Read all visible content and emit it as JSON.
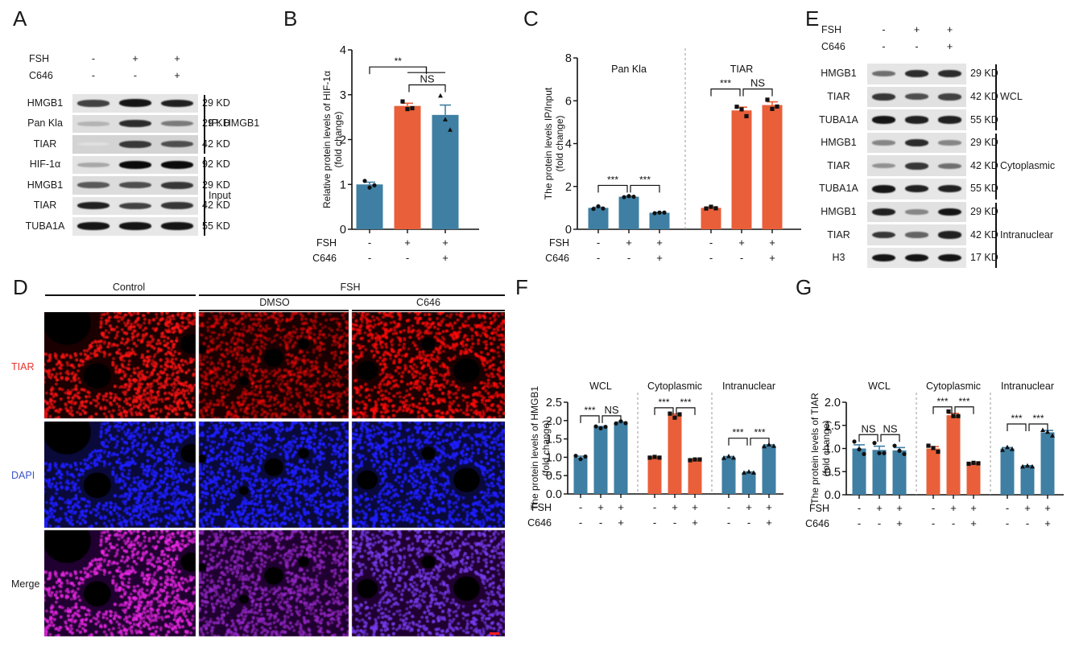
{
  "figure": {
    "panels": [
      "A",
      "B",
      "C",
      "D",
      "E",
      "F",
      "G"
    ],
    "colors": {
      "blue": "#3f7fa3",
      "orange": "#e95f3a",
      "tiar_label": "#e8312b",
      "dapi_label": "#3b54c8",
      "axis": "#111111",
      "separator": "#9a9a9a"
    }
  },
  "panel_a": {
    "letter": "A",
    "treatments": [
      {
        "name": "FSH",
        "values": [
          "-",
          "+",
          "+"
        ]
      },
      {
        "name": "C646",
        "values": [
          "-",
          "-",
          "+"
        ]
      }
    ],
    "rows": [
      {
        "protein": "HMGB1",
        "size": "29 KD",
        "intensity": [
          0.75,
          0.95,
          0.9
        ],
        "bg": 0.1
      },
      {
        "protein": "Pan Kla",
        "size": "29 KD",
        "intensity": [
          0.25,
          0.85,
          0.5
        ],
        "bg": 0.18
      },
      {
        "protein": "TIAR",
        "size": "42 KD",
        "intensity": [
          0.05,
          0.8,
          0.7
        ],
        "bg": 0.3
      },
      {
        "protein": "HIF-1α",
        "size": "92 KD",
        "intensity": [
          0.3,
          1.0,
          1.0
        ],
        "bg": 0.12
      },
      {
        "protein": "HMGB1",
        "size": "29 KD",
        "intensity": [
          0.65,
          0.7,
          0.8
        ],
        "bg": 0.2
      },
      {
        "protein": "TIAR",
        "size": "42 KD",
        "intensity": [
          0.9,
          0.75,
          0.8
        ],
        "bg": 0.1
      },
      {
        "protein": "TUBA1A",
        "size": "55 KD",
        "intensity": [
          0.95,
          0.95,
          0.95
        ],
        "bg": 0.08
      }
    ],
    "groups": [
      {
        "label": "IP: HMGB1",
        "rows": [
          0,
          2
        ]
      },
      {
        "label": "Input",
        "rows": [
          3,
          6
        ]
      }
    ]
  },
  "panel_d": {
    "letter": "D",
    "top_headers": [
      {
        "label": "Control",
        "cols": [
          0,
          0
        ]
      },
      {
        "label": "FSH",
        "cols": [
          1,
          2
        ]
      }
    ],
    "sub_headers": [
      {
        "label": "DMSO",
        "col": 1
      },
      {
        "label": "C646",
        "col": 2
      }
    ],
    "row_labels": [
      "TIAR",
      "DAPI",
      "Merge"
    ]
  },
  "panel_e": {
    "letter": "E",
    "treatments": [
      {
        "name": "FSH",
        "values": [
          "-",
          "+",
          "+"
        ]
      },
      {
        "name": "C646",
        "values": [
          "-",
          "-",
          "+"
        ]
      }
    ],
    "rows": [
      {
        "protein": "HMGB1",
        "size": "29 KD",
        "intensity": [
          0.55,
          0.85,
          0.85
        ],
        "bg": 0.1
      },
      {
        "protein": "TIAR",
        "size": "42 KD",
        "intensity": [
          0.8,
          0.7,
          0.75
        ],
        "bg": 0.15
      },
      {
        "protein": "TUBA1A",
        "size": "55 KD",
        "intensity": [
          0.95,
          0.9,
          0.9
        ],
        "bg": 0.1
      },
      {
        "protein": "HMGB1",
        "size": "29 KD",
        "intensity": [
          0.45,
          0.85,
          0.45
        ],
        "bg": 0.12
      },
      {
        "protein": "TIAR",
        "size": "42 KD",
        "intensity": [
          0.4,
          0.8,
          0.55
        ],
        "bg": 0.15
      },
      {
        "protein": "TUBA1A",
        "size": "55 KD",
        "intensity": [
          0.95,
          0.9,
          0.9
        ],
        "bg": 0.08
      },
      {
        "protein": "HMGB1",
        "size": "29 KD",
        "intensity": [
          0.9,
          0.45,
          0.95
        ],
        "bg": 0.15
      },
      {
        "protein": "TIAR",
        "size": "42 KD",
        "intensity": [
          0.8,
          0.6,
          0.9
        ],
        "bg": 0.12
      },
      {
        "protein": "H3",
        "size": "17 KD",
        "intensity": [
          0.95,
          0.95,
          0.95
        ],
        "bg": 0.08
      }
    ],
    "groups": [
      {
        "label": "WCL",
        "rows": [
          0,
          2
        ]
      },
      {
        "label": "Cytoplasmic",
        "rows": [
          3,
          5
        ]
      },
      {
        "label": "Intranuclear",
        "rows": [
          6,
          8
        ]
      }
    ]
  },
  "chart_data": [
    {
      "id": "B",
      "letter": "B",
      "type": "bar",
      "title": "",
      "ylabel": "Relative protein levels of HIF-1α\n(fold change)",
      "ylim": [
        0,
        4
      ],
      "yticks": [
        "0",
        "1",
        "2",
        "3",
        "4"
      ],
      "ytick_values": [
        0,
        1,
        2,
        3,
        4
      ],
      "groups": [
        {
          "label": "",
          "bars": [
            {
              "value": 1.0,
              "sem": 0.05,
              "color": "blue",
              "points": [
                1.08,
                0.93,
                0.98
              ],
              "marker": "circle"
            },
            {
              "value": 2.75,
              "sem": 0.06,
              "color": "orange",
              "points": [
                2.85,
                2.68,
                2.7
              ],
              "marker": "square"
            },
            {
              "value": 2.55,
              "sem": 0.22,
              "color": "blue",
              "points": [
                2.98,
                2.45,
                2.22
              ],
              "marker": "triangle"
            }
          ]
        }
      ],
      "treatments": [
        {
          "name": "FSH",
          "values": [
            "-",
            "+",
            "+"
          ]
        },
        {
          "name": "C646",
          "values": [
            "-",
            "-",
            "+"
          ]
        }
      ],
      "significance": [
        {
          "from": [
            0,
            0
          ],
          "to": "group-1-2",
          "label": "**",
          "y": 3.62
        },
        {
          "from": [
            0,
            1
          ],
          "to": [
            0,
            2
          ],
          "label": "NS",
          "y": 3.22
        }
      ]
    },
    {
      "id": "C",
      "letter": "C",
      "type": "bar",
      "ylabel": "The protein levels IP/Input\n(fold change)",
      "ylim": [
        0,
        8
      ],
      "yticks": [
        "0",
        "2",
        "4",
        "6",
        "8"
      ],
      "ytick_values": [
        0,
        2,
        4,
        6,
        8
      ],
      "groups": [
        {
          "label": "Pan Kla",
          "bars": [
            {
              "value": 1.0,
              "sem": 0.03,
              "color": "blue",
              "points": [
                0.95,
                1.07,
                0.97
              ],
              "marker": "circle"
            },
            {
              "value": 1.52,
              "sem": 0.02,
              "color": "blue",
              "points": [
                1.5,
                1.55,
                1.52
              ],
              "marker": "circle"
            },
            {
              "value": 0.77,
              "sem": 0.02,
              "color": "blue",
              "points": [
                0.75,
                0.78,
                0.78
              ],
              "marker": "circle"
            }
          ]
        },
        {
          "label": "TIAR",
          "bars": [
            {
              "value": 1.0,
              "sem": 0.03,
              "color": "orange",
              "points": [
                0.97,
                1.05,
                0.98
              ],
              "marker": "square"
            },
            {
              "value": 5.55,
              "sem": 0.15,
              "color": "orange",
              "points": [
                5.72,
                5.6,
                5.28
              ],
              "marker": "square"
            },
            {
              "value": 5.8,
              "sem": 0.15,
              "color": "orange",
              "points": [
                6.05,
                5.62,
                5.73
              ],
              "marker": "square"
            }
          ]
        }
      ],
      "treatments": [
        {
          "name": "FSH",
          "values": [
            "-",
            "+",
            "+",
            "-",
            "+",
            "+"
          ]
        },
        {
          "name": "C646",
          "values": [
            "-",
            "-",
            "+",
            "-",
            "-",
            "+"
          ]
        }
      ],
      "significance": [
        {
          "from": [
            0,
            0
          ],
          "to": [
            0,
            1
          ],
          "label": "***",
          "y": 2.05
        },
        {
          "from": [
            0,
            1
          ],
          "to": [
            0,
            2
          ],
          "label": "***",
          "y": 2.05
        },
        {
          "from": [
            1,
            0
          ],
          "to": [
            1,
            1
          ],
          "label": "***",
          "y": 6.55
        },
        {
          "from": [
            1,
            1
          ],
          "to": [
            1,
            2
          ],
          "label": "NS",
          "y": 6.55
        }
      ]
    },
    {
      "id": "F",
      "letter": "F",
      "type": "bar",
      "ylabel": "The protein levels of HMGB1\n(fold change)",
      "ylim": [
        0,
        2.5
      ],
      "yticks": [
        "0.0",
        "0.5",
        "1.0",
        "1.5",
        "2.0",
        "2.5"
      ],
      "ytick_values": [
        0,
        0.5,
        1.0,
        1.5,
        2.0,
        2.5
      ],
      "groups": [
        {
          "label": "WCL",
          "bars": [
            {
              "value": 1.0,
              "sem": 0.03,
              "color": "blue",
              "points": [
                1.04,
                0.95,
                1.02
              ],
              "marker": "circle"
            },
            {
              "value": 1.82,
              "sem": 0.02,
              "color": "blue",
              "points": [
                1.84,
                1.79,
                1.83
              ],
              "marker": "circle"
            },
            {
              "value": 1.94,
              "sem": 0.02,
              "color": "blue",
              "points": [
                1.92,
                1.98,
                1.93
              ],
              "marker": "circle"
            }
          ]
        },
        {
          "label": "Cytoplasmic",
          "bars": [
            {
              "value": 1.0,
              "sem": 0.01,
              "color": "orange",
              "points": [
                0.99,
                1.01,
                0.99
              ],
              "marker": "square"
            },
            {
              "value": 2.15,
              "sem": 0.03,
              "color": "orange",
              "points": [
                2.19,
                2.08,
                2.17
              ],
              "marker": "square"
            },
            {
              "value": 0.94,
              "sem": 0.01,
              "color": "orange",
              "points": [
                0.92,
                0.94,
                0.94
              ],
              "marker": "square"
            }
          ]
        },
        {
          "label": "Intranuclear",
          "bars": [
            {
              "value": 1.0,
              "sem": 0.02,
              "color": "blue",
              "points": [
                0.98,
                1.03,
                0.99
              ],
              "marker": "triangle"
            },
            {
              "value": 0.59,
              "sem": 0.01,
              "color": "blue",
              "points": [
                0.58,
                0.61,
                0.58
              ],
              "marker": "triangle"
            },
            {
              "value": 1.32,
              "sem": 0.02,
              "color": "blue",
              "points": [
                1.3,
                1.35,
                1.31
              ],
              "marker": "triangle"
            }
          ]
        }
      ],
      "treatments": [
        {
          "name": "FSH",
          "values": [
            "-",
            "+",
            "+",
            "-",
            "+",
            "+",
            "-",
            "+",
            "+"
          ]
        },
        {
          "name": "C646",
          "values": [
            "-",
            "-",
            "+",
            "-",
            "-",
            "+",
            "-",
            "-",
            "+"
          ]
        }
      ],
      "significance": [
        {
          "from": [
            0,
            0
          ],
          "to": [
            0,
            1
          ],
          "label": "***",
          "y": 2.13
        },
        {
          "from": [
            0,
            1
          ],
          "to": [
            0,
            2
          ],
          "label": "NS",
          "y": 2.13
        },
        {
          "from": [
            1,
            0
          ],
          "to": [
            1,
            1
          ],
          "label": "***",
          "y": 2.35
        },
        {
          "from": [
            1,
            1
          ],
          "to": [
            1,
            2
          ],
          "label": "***",
          "y": 2.35
        },
        {
          "from": [
            2,
            0
          ],
          "to": [
            2,
            1
          ],
          "label": "***",
          "y": 1.52
        },
        {
          "from": [
            2,
            1
          ],
          "to": [
            2,
            2
          ],
          "label": "***",
          "y": 1.52
        }
      ]
    },
    {
      "id": "G",
      "letter": "G",
      "type": "bar",
      "ylabel": "The protein levels of TIAR\n(fold change)",
      "ylim": [
        0,
        2.0
      ],
      "yticks": [
        "0.0",
        "0.5",
        "1.0",
        "1.5",
        "2.0"
      ],
      "ytick_values": [
        0,
        0.5,
        1.0,
        1.5,
        2.0
      ],
      "groups": [
        {
          "label": "WCL",
          "bars": [
            {
              "value": 1.0,
              "sem": 0.08,
              "color": "blue",
              "points": [
                1.15,
                0.98,
                0.88
              ],
              "marker": "circle"
            },
            {
              "value": 0.97,
              "sem": 0.08,
              "color": "blue",
              "points": [
                1.12,
                0.9,
                0.9
              ],
              "marker": "circle"
            },
            {
              "value": 0.96,
              "sem": 0.06,
              "color": "blue",
              "points": [
                1.06,
                0.95,
                0.88
              ],
              "marker": "circle"
            }
          ]
        },
        {
          "label": "Cytoplasmic",
          "bars": [
            {
              "value": 1.0,
              "sem": 0.04,
              "color": "orange",
              "points": [
                1.06,
                1.01,
                0.93
              ],
              "marker": "square"
            },
            {
              "value": 1.72,
              "sem": 0.04,
              "color": "orange",
              "points": [
                1.8,
                1.7,
                1.7
              ],
              "marker": "square"
            },
            {
              "value": 0.68,
              "sem": 0.01,
              "color": "orange",
              "points": [
                0.67,
                0.69,
                0.68
              ],
              "marker": "square"
            }
          ]
        },
        {
          "label": "Intranuclear",
          "bars": [
            {
              "value": 1.0,
              "sem": 0.02,
              "color": "blue",
              "points": [
                0.97,
                1.03,
                0.99
              ],
              "marker": "triangle"
            },
            {
              "value": 0.62,
              "sem": 0.01,
              "color": "blue",
              "points": [
                0.61,
                0.63,
                0.61
              ],
              "marker": "triangle"
            },
            {
              "value": 1.35,
              "sem": 0.04,
              "color": "blue",
              "points": [
                1.4,
                1.36,
                1.28
              ],
              "marker": "triangle"
            }
          ]
        }
      ],
      "treatments": [
        {
          "name": "FSH",
          "values": [
            "-",
            "+",
            "+",
            "-",
            "+",
            "+",
            "-",
            "+",
            "+"
          ]
        },
        {
          "name": "C646",
          "values": [
            "-",
            "-",
            "+",
            "-",
            "-",
            "+",
            "-",
            "-",
            "+"
          ]
        }
      ],
      "significance": [
        {
          "from": [
            0,
            0
          ],
          "to": [
            0,
            1
          ],
          "label": "NS",
          "y": 1.3
        },
        {
          "from": [
            0,
            1
          ],
          "to": [
            0,
            2
          ],
          "label": "NS",
          "y": 1.3
        },
        {
          "from": [
            1,
            0
          ],
          "to": [
            1,
            1
          ],
          "label": "***",
          "y": 1.9
        },
        {
          "from": [
            1,
            1
          ],
          "to": [
            1,
            2
          ],
          "label": "***",
          "y": 1.9
        },
        {
          "from": [
            2,
            0
          ],
          "to": [
            2,
            1
          ],
          "label": "***",
          "y": 1.53
        },
        {
          "from": [
            2,
            1
          ],
          "to": [
            2,
            2
          ],
          "label": "***",
          "y": 1.53
        }
      ]
    }
  ]
}
